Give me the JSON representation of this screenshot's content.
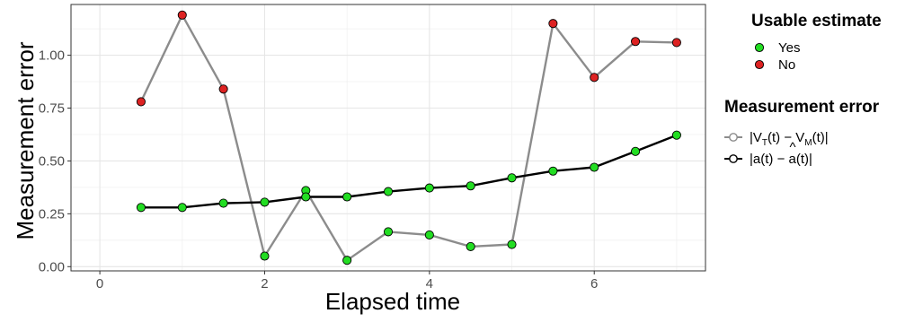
{
  "chart_data": {
    "type": "line",
    "xlabel": "Elapsed time",
    "ylabel": "Measurement error",
    "xlim": [
      -0.35,
      7.35
    ],
    "ylim": [
      -0.02,
      1.24
    ],
    "x_ticks": [
      0,
      2,
      4,
      6
    ],
    "x_tick_labels": [
      "0",
      "2",
      "4",
      "6"
    ],
    "x_minor_ticks": [
      1,
      3,
      5,
      7
    ],
    "y_ticks": [
      0.0,
      0.25,
      0.5,
      0.75,
      1.0
    ],
    "y_tick_labels": [
      "0.00",
      "0.25",
      "0.50",
      "0.75",
      "1.00"
    ],
    "y_minor_ticks": [
      0.125,
      0.375,
      0.625,
      0.875,
      1.125
    ],
    "grid": true,
    "legend_placement": "right",
    "series": [
      {
        "key": "vt_vm",
        "line_color": "#8c8c8c",
        "x": [
          0.5,
          1.0,
          1.5,
          2.0,
          2.5,
          3.0,
          3.5,
          4.0,
          4.5,
          5.0,
          5.5,
          6.0,
          6.5,
          7.0
        ],
        "y": [
          0.78,
          1.19,
          0.84,
          0.05,
          0.36,
          0.03,
          0.165,
          0.15,
          0.095,
          0.105,
          1.15,
          0.895,
          1.065,
          1.06
        ],
        "usable": [
          "No",
          "No",
          "No",
          "Yes",
          "Yes",
          "Yes",
          "Yes",
          "Yes",
          "Yes",
          "Yes",
          "No",
          "No",
          "No",
          "No"
        ]
      },
      {
        "key": "a_ahat",
        "line_color": "#000000",
        "x": [
          0.5,
          1.0,
          1.5,
          2.0,
          2.5,
          3.0,
          3.5,
          4.0,
          4.5,
          5.0,
          5.5,
          6.0,
          6.5,
          7.0
        ],
        "y": [
          0.28,
          0.28,
          0.3,
          0.305,
          0.33,
          0.33,
          0.355,
          0.372,
          0.382,
          0.42,
          0.452,
          0.47,
          0.545,
          0.622
        ],
        "usable": [
          "Yes",
          "Yes",
          "Yes",
          "Yes",
          "Yes",
          "Yes",
          "Yes",
          "Yes",
          "Yes",
          "Yes",
          "Yes",
          "Yes",
          "Yes",
          "Yes"
        ]
      }
    ],
    "legend_usable": {
      "title": "Usable estimate",
      "items": [
        {
          "label": "Yes",
          "color": "#22dd22"
        },
        {
          "label": "No",
          "color": "#dd2222"
        }
      ]
    },
    "legend_error": {
      "title": "Measurement error",
      "items": [
        {
          "series_key": "vt_vm",
          "color": "#8c8c8c",
          "label_prefix": "|V",
          "sub1": "T",
          "label_mid": "(t) − V",
          "sub2": "M",
          "label_suffix": "(t)|"
        },
        {
          "series_key": "a_ahat",
          "color": "#000000",
          "label_prefix": "|a(t) − ",
          "hat_char": "a",
          "hat_mark": "^",
          "label_suffix": "(t)|"
        }
      ]
    }
  }
}
